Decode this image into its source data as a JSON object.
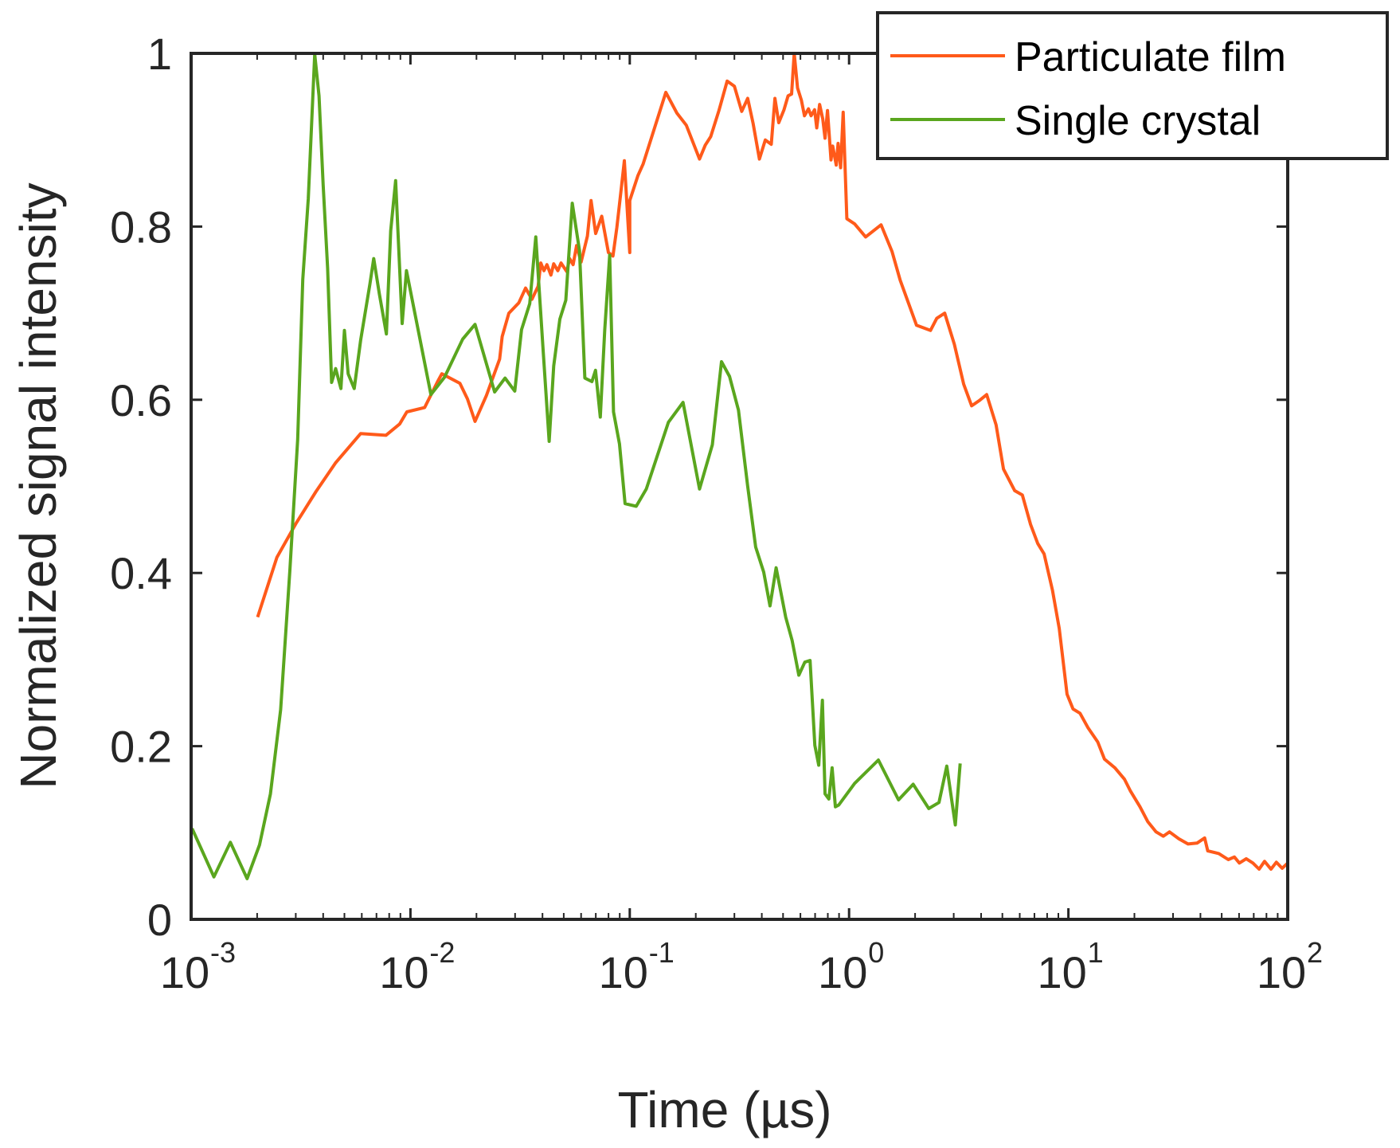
{
  "chart_data": {
    "type": "line",
    "title": "",
    "xlabel": "Time (µs)",
    "ylabel": "Normalized signal intensity",
    "xscale": "log",
    "xlim": [
      0.001,
      100
    ],
    "ylim": [
      0,
      1
    ],
    "grid": false,
    "legend_position": "top-right",
    "x_ticks": [
      {
        "value": 0.001,
        "base": "10",
        "exp": "-3"
      },
      {
        "value": 0.01,
        "base": "10",
        "exp": "-2"
      },
      {
        "value": 0.1,
        "base": "10",
        "exp": "-1"
      },
      {
        "value": 1,
        "base": "10",
        "exp": "0"
      },
      {
        "value": 10,
        "base": "10",
        "exp": "1"
      },
      {
        "value": 100,
        "base": "10",
        "exp": "2"
      }
    ],
    "y_ticks": [
      {
        "value": 0,
        "label": "0"
      },
      {
        "value": 0.2,
        "label": "0.2"
      },
      {
        "value": 0.4,
        "label": "0.4"
      },
      {
        "value": 0.6,
        "label": "0.6"
      },
      {
        "value": 0.8,
        "label": "0.8"
      },
      {
        "value": 1,
        "label": "1"
      }
    ],
    "series": [
      {
        "name": "Particulate film",
        "color": "#ff5a1a",
        "points": [
          [
            0.00201,
            0.349
          ],
          [
            0.00246,
            0.418
          ],
          [
            0.00302,
            0.458
          ],
          [
            0.00371,
            0.494
          ],
          [
            0.00455,
            0.527
          ],
          [
            0.00593,
            0.561
          ],
          [
            0.00773,
            0.559
          ],
          [
            0.00893,
            0.572
          ],
          [
            0.00963,
            0.586
          ],
          [
            0.0116,
            0.591
          ],
          [
            0.0133,
            0.621
          ],
          [
            0.0139,
            0.63
          ],
          [
            0.0168,
            0.619
          ],
          [
            0.0182,
            0.601
          ],
          [
            0.0197,
            0.575
          ],
          [
            0.0222,
            0.605
          ],
          [
            0.0255,
            0.647
          ],
          [
            0.0262,
            0.673
          ],
          [
            0.0281,
            0.7
          ],
          [
            0.0312,
            0.712
          ],
          [
            0.0335,
            0.729
          ],
          [
            0.0358,
            0.716
          ],
          [
            0.0382,
            0.731
          ],
          [
            0.0393,
            0.758
          ],
          [
            0.0406,
            0.749
          ],
          [
            0.0419,
            0.756
          ],
          [
            0.0437,
            0.744
          ],
          [
            0.045,
            0.757
          ],
          [
            0.047,
            0.749
          ],
          [
            0.0486,
            0.758
          ],
          [
            0.0516,
            0.748
          ],
          [
            0.0532,
            0.763
          ],
          [
            0.0552,
            0.756
          ],
          [
            0.0572,
            0.778
          ],
          [
            0.06,
            0.759
          ],
          [
            0.0641,
            0.789
          ],
          [
            0.0666,
            0.83
          ],
          [
            0.0699,
            0.792
          ],
          [
            0.0745,
            0.812
          ],
          [
            0.0799,
            0.77
          ],
          [
            0.0838,
            0.766
          ],
          [
            0.0873,
            0.799
          ],
          [
            0.0913,
            0.842
          ],
          [
            0.0945,
            0.876
          ],
          [
            0.1,
            0.77
          ],
          [
            0.1,
            0.83
          ],
          [
            0.109,
            0.859
          ],
          [
            0.115,
            0.872
          ],
          [
            0.146,
            0.955
          ],
          [
            0.164,
            0.931
          ],
          [
            0.181,
            0.917
          ],
          [
            0.208,
            0.878
          ],
          [
            0.221,
            0.894
          ],
          [
            0.234,
            0.904
          ],
          [
            0.255,
            0.934
          ],
          [
            0.278,
            0.968
          ],
          [
            0.3,
            0.962
          ],
          [
            0.324,
            0.933
          ],
          [
            0.345,
            0.948
          ],
          [
            0.365,
            0.919
          ],
          [
            0.39,
            0.878
          ],
          [
            0.415,
            0.9
          ],
          [
            0.442,
            0.895
          ],
          [
            0.459,
            0.948
          ],
          [
            0.478,
            0.92
          ],
          [
            0.505,
            0.935
          ],
          [
            0.527,
            0.951
          ],
          [
            0.547,
            0.953
          ],
          [
            0.562,
            1.0
          ],
          [
            0.582,
            0.96
          ],
          [
            0.606,
            0.946
          ],
          [
            0.626,
            0.928
          ],
          [
            0.653,
            0.936
          ],
          [
            0.671,
            0.928
          ],
          [
            0.696,
            0.935
          ],
          [
            0.712,
            0.914
          ],
          [
            0.734,
            0.941
          ],
          [
            0.759,
            0.924
          ],
          [
            0.777,
            0.902
          ],
          [
            0.797,
            0.934
          ],
          [
            0.827,
            0.877
          ],
          [
            0.842,
            0.893
          ],
          [
            0.874,
            0.871
          ],
          [
            0.891,
            0.896
          ],
          [
            0.915,
            0.868
          ],
          [
            0.94,
            0.932
          ],
          [
            0.977,
            0.809
          ],
          [
            1.06,
            0.803
          ],
          [
            1.19,
            0.788
          ],
          [
            1.4,
            0.802
          ],
          [
            1.57,
            0.771
          ],
          [
            1.71,
            0.738
          ],
          [
            2.03,
            0.686
          ],
          [
            2.35,
            0.68
          ],
          [
            2.51,
            0.694
          ],
          [
            2.73,
            0.7
          ],
          [
            3.02,
            0.664
          ],
          [
            3.33,
            0.618
          ],
          [
            3.62,
            0.593
          ],
          [
            3.92,
            0.599
          ],
          [
            4.24,
            0.606
          ],
          [
            4.68,
            0.571
          ],
          [
            5.06,
            0.52
          ],
          [
            5.69,
            0.495
          ],
          [
            6.17,
            0.49
          ],
          [
            6.72,
            0.456
          ],
          [
            7.25,
            0.434
          ],
          [
            7.75,
            0.422
          ],
          [
            8.46,
            0.38
          ],
          [
            9.08,
            0.336
          ],
          [
            9.86,
            0.26
          ],
          [
            10.5,
            0.243
          ],
          [
            11.3,
            0.238
          ],
          [
            12.3,
            0.221
          ],
          [
            13.6,
            0.205
          ],
          [
            14.6,
            0.185
          ],
          [
            16.3,
            0.175
          ],
          [
            18.0,
            0.162
          ],
          [
            19.2,
            0.148
          ],
          [
            21.2,
            0.13
          ],
          [
            23.0,
            0.113
          ],
          [
            25.1,
            0.101
          ],
          [
            27.1,
            0.096
          ],
          [
            28.9,
            0.101
          ],
          [
            31.9,
            0.093
          ],
          [
            35.1,
            0.087
          ],
          [
            38.6,
            0.088
          ],
          [
            41.8,
            0.094
          ],
          [
            43.2,
            0.079
          ],
          [
            48.5,
            0.076
          ],
          [
            53.6,
            0.069
          ],
          [
            57.1,
            0.072
          ],
          [
            60.2,
            0.065
          ],
          [
            64.7,
            0.07
          ],
          [
            69.4,
            0.065
          ],
          [
            74.1,
            0.058
          ],
          [
            78.4,
            0.067
          ],
          [
            83.9,
            0.058
          ],
          [
            88.7,
            0.066
          ],
          [
            94.3,
            0.059
          ],
          [
            100.0,
            0.065
          ]
        ]
      },
      {
        "name": "Single crystal",
        "color": "#5aa61e",
        "points": [
          [
            0.00101,
            0.105
          ],
          [
            0.00127,
            0.049
          ],
          [
            0.00151,
            0.089
          ],
          [
            0.0018,
            0.047
          ],
          [
            0.00205,
            0.086
          ],
          [
            0.0023,
            0.145
          ],
          [
            0.00256,
            0.242
          ],
          [
            0.00282,
            0.403
          ],
          [
            0.00306,
            0.554
          ],
          [
            0.00323,
            0.739
          ],
          [
            0.00342,
            0.832
          ],
          [
            0.00366,
            0.999
          ],
          [
            0.00383,
            0.951
          ],
          [
            0.004,
            0.848
          ],
          [
            0.00419,
            0.752
          ],
          [
            0.00437,
            0.62
          ],
          [
            0.00456,
            0.636
          ],
          [
            0.00482,
            0.613
          ],
          [
            0.005,
            0.68
          ],
          [
            0.0052,
            0.63
          ],
          [
            0.00554,
            0.613
          ],
          [
            0.00593,
            0.669
          ],
          [
            0.00653,
            0.733
          ],
          [
            0.0068,
            0.763
          ],
          [
            0.00722,
            0.722
          ],
          [
            0.00777,
            0.676
          ],
          [
            0.00813,
            0.795
          ],
          [
            0.00856,
            0.853
          ],
          [
            0.00917,
            0.688
          ],
          [
            0.00959,
            0.749
          ],
          [
            0.0124,
            0.606
          ],
          [
            0.0143,
            0.626
          ],
          [
            0.0173,
            0.67
          ],
          [
            0.0197,
            0.687
          ],
          [
            0.0242,
            0.609
          ],
          [
            0.027,
            0.625
          ],
          [
            0.0299,
            0.61
          ],
          [
            0.0321,
            0.681
          ],
          [
            0.035,
            0.711
          ],
          [
            0.0373,
            0.788
          ],
          [
            0.0403,
            0.656
          ],
          [
            0.0429,
            0.552
          ],
          [
            0.045,
            0.639
          ],
          [
            0.048,
            0.693
          ],
          [
            0.0511,
            0.715
          ],
          [
            0.0547,
            0.827
          ],
          [
            0.059,
            0.772
          ],
          [
            0.0624,
            0.625
          ],
          [
            0.0672,
            0.621
          ],
          [
            0.0698,
            0.634
          ],
          [
            0.0734,
            0.58
          ],
          [
            0.0769,
            0.681
          ],
          [
            0.081,
            0.767
          ],
          [
            0.0843,
            0.586
          ],
          [
            0.0898,
            0.549
          ],
          [
            0.0952,
            0.48
          ],
          [
            0.107,
            0.477
          ],
          [
            0.119,
            0.497
          ],
          [
            0.15,
            0.574
          ],
          [
            0.175,
            0.597
          ],
          [
            0.208,
            0.497
          ],
          [
            0.238,
            0.548
          ],
          [
            0.262,
            0.644
          ],
          [
            0.285,
            0.627
          ],
          [
            0.313,
            0.588
          ],
          [
            0.345,
            0.5
          ],
          [
            0.375,
            0.43
          ],
          [
            0.408,
            0.401
          ],
          [
            0.436,
            0.362
          ],
          [
            0.465,
            0.406
          ],
          [
            0.514,
            0.349
          ],
          [
            0.55,
            0.322
          ],
          [
            0.59,
            0.282
          ],
          [
            0.628,
            0.297
          ],
          [
            0.664,
            0.299
          ],
          [
            0.698,
            0.201
          ],
          [
            0.727,
            0.178
          ],
          [
            0.756,
            0.253
          ],
          [
            0.777,
            0.145
          ],
          [
            0.809,
            0.139
          ],
          [
            0.837,
            0.175
          ],
          [
            0.866,
            0.13
          ],
          [
            0.897,
            0.132
          ],
          [
            1.06,
            0.157
          ],
          [
            1.36,
            0.184
          ],
          [
            1.68,
            0.138
          ],
          [
            1.96,
            0.156
          ],
          [
            2.31,
            0.128
          ],
          [
            2.57,
            0.135
          ],
          [
            2.79,
            0.177
          ],
          [
            3.05,
            0.109
          ],
          [
            3.21,
            0.18
          ]
        ]
      }
    ]
  }
}
